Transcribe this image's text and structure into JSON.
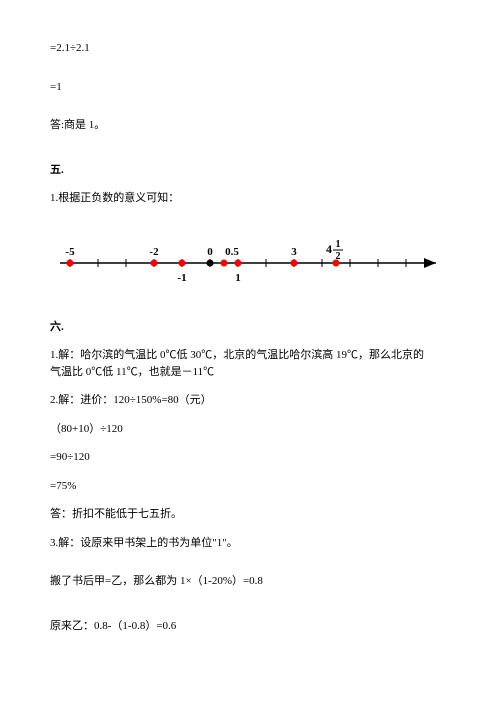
{
  "lines": {
    "eq1": "=2.1÷2.1",
    "eq2": "=1",
    "answer1": "答:商是 1。"
  },
  "section5": {
    "title": "五.",
    "line1": "1.根据正负数的意义可知："
  },
  "numberline": {
    "points": [
      {
        "x": 0,
        "label": "-5",
        "labelY": "above"
      },
      {
        "x": 3,
        "label": "-2",
        "labelY": "above"
      },
      {
        "x": 4,
        "label": "-1",
        "labelY": "below"
      },
      {
        "x": 5,
        "label": "0",
        "labelY": "above",
        "black": true
      },
      {
        "x": 5.5,
        "label": "0.5",
        "labelY": "above",
        "labelDx": 8
      },
      {
        "x": 6,
        "label": "1",
        "labelY": "below"
      },
      {
        "x": 8,
        "label": "3",
        "labelY": "above"
      },
      {
        "x": 9.5,
        "label": "4½",
        "labelY": "above",
        "frac": true
      }
    ],
    "ticks": [
      0,
      1,
      2,
      3,
      4,
      5,
      6,
      7,
      8,
      9,
      10,
      11,
      12
    ],
    "axisColor": "#000000",
    "dotColor": "#ff0000"
  },
  "section6": {
    "title": "六.",
    "p1a": "1.解：哈尔滨的气温比 0℃低 30℃，北京的气温比哈尔滨高 19℃，那么北京的",
    "p1b": "气温比 0℃低 11℃，也就是－11℃",
    "p2": "2.解：进价：120÷150%=80（元）",
    "p3": "（80+10）÷120",
    "p4": "=90÷120",
    "p5": "=75%",
    "p6": "答：折扣不能低于七五折。",
    "p7": "3.解：设原来甲书架上的书为单位\"1\"。",
    "p8": "搬了书后甲=乙，那么都为 1×（1-20%）=0.8",
    "p9": "原来乙：0.8-（1-0.8）=0.6"
  }
}
